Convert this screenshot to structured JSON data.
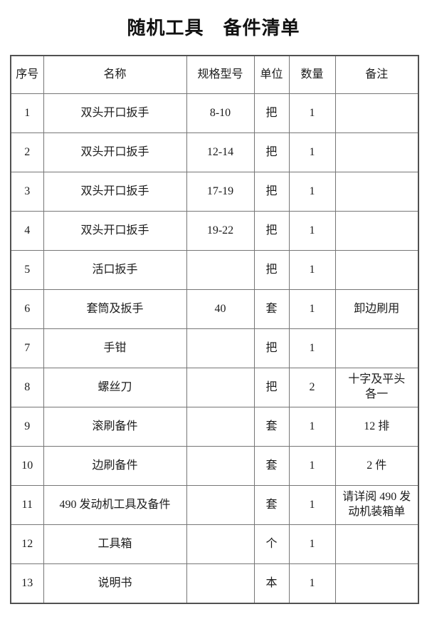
{
  "page": {
    "title": "随机工具　备件清单"
  },
  "table": {
    "columns": [
      "序号",
      "名称",
      "规格型号",
      "单位",
      "数量",
      "备注"
    ],
    "rows": [
      {
        "no": "1",
        "name": "双头开口扳手",
        "spec": "8-10",
        "unit": "把",
        "qty": "1",
        "remark": ""
      },
      {
        "no": "2",
        "name": "双头开口扳手",
        "spec": "12-14",
        "unit": "把",
        "qty": "1",
        "remark": ""
      },
      {
        "no": "3",
        "name": "双头开口扳手",
        "spec": "17-19",
        "unit": "把",
        "qty": "1",
        "remark": ""
      },
      {
        "no": "4",
        "name": "双头开口扳手",
        "spec": "19-22",
        "unit": "把",
        "qty": "1",
        "remark": ""
      },
      {
        "no": "5",
        "name": "活口扳手",
        "spec": "",
        "unit": "把",
        "qty": "1",
        "remark": ""
      },
      {
        "no": "6",
        "name": "套筒及扳手",
        "spec": "40",
        "unit": "套",
        "qty": "1",
        "remark": "卸边刷用"
      },
      {
        "no": "7",
        "name": "手钳",
        "spec": "",
        "unit": "把",
        "qty": "1",
        "remark": ""
      },
      {
        "no": "8",
        "name": "螺丝刀",
        "spec": "",
        "unit": "把",
        "qty": "2",
        "remark": "十字及平头\n各一"
      },
      {
        "no": "9",
        "name": "滚刷备件",
        "spec": "",
        "unit": "套",
        "qty": "1",
        "remark": "12 排"
      },
      {
        "no": "10",
        "name": "边刷备件",
        "spec": "",
        "unit": "套",
        "qty": "1",
        "remark": "2 件"
      },
      {
        "no": "11",
        "name": "490 发动机工具及备件",
        "spec": "",
        "unit": "套",
        "qty": "1",
        "remark": "请详阅 490 发\n动机装箱单"
      },
      {
        "no": "12",
        "name": "工具箱",
        "spec": "",
        "unit": "个",
        "qty": "1",
        "remark": ""
      },
      {
        "no": "13",
        "name": "说明书",
        "spec": "",
        "unit": "本",
        "qty": "1",
        "remark": ""
      }
    ]
  }
}
